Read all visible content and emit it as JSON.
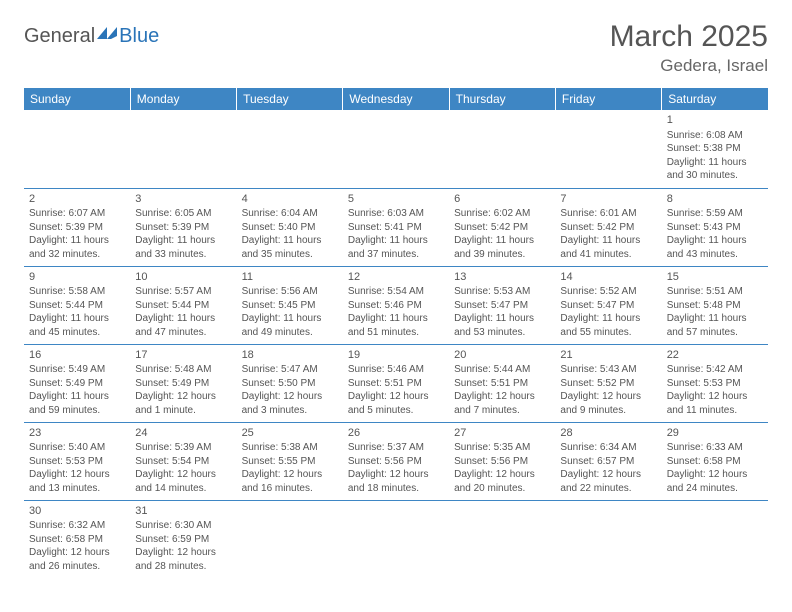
{
  "logo": {
    "general": "General",
    "blue": "Blue"
  },
  "title": "March 2025",
  "location": "Gedera, Israel",
  "weekdays": [
    "Sunday",
    "Monday",
    "Tuesday",
    "Wednesday",
    "Thursday",
    "Friday",
    "Saturday"
  ],
  "colors": {
    "header_bg": "#3e86c4",
    "header_text": "#ffffff",
    "border": "#3e86c4",
    "body_text": "#555555",
    "logo_blue": "#2a74b8",
    "logo_gray": "#555555"
  },
  "layout": {
    "cols": 7,
    "rows": 6,
    "first_weekday_index": 6,
    "days_in_month": 31
  },
  "days": {
    "1": {
      "sunrise": "6:08 AM",
      "sunset": "5:38 PM",
      "dl_h": 11,
      "dl_m": 30
    },
    "2": {
      "sunrise": "6:07 AM",
      "sunset": "5:39 PM",
      "dl_h": 11,
      "dl_m": 32
    },
    "3": {
      "sunrise": "6:05 AM",
      "sunset": "5:39 PM",
      "dl_h": 11,
      "dl_m": 33
    },
    "4": {
      "sunrise": "6:04 AM",
      "sunset": "5:40 PM",
      "dl_h": 11,
      "dl_m": 35
    },
    "5": {
      "sunrise": "6:03 AM",
      "sunset": "5:41 PM",
      "dl_h": 11,
      "dl_m": 37
    },
    "6": {
      "sunrise": "6:02 AM",
      "sunset": "5:42 PM",
      "dl_h": 11,
      "dl_m": 39
    },
    "7": {
      "sunrise": "6:01 AM",
      "sunset": "5:42 PM",
      "dl_h": 11,
      "dl_m": 41
    },
    "8": {
      "sunrise": "5:59 AM",
      "sunset": "5:43 PM",
      "dl_h": 11,
      "dl_m": 43
    },
    "9": {
      "sunrise": "5:58 AM",
      "sunset": "5:44 PM",
      "dl_h": 11,
      "dl_m": 45
    },
    "10": {
      "sunrise": "5:57 AM",
      "sunset": "5:44 PM",
      "dl_h": 11,
      "dl_m": 47
    },
    "11": {
      "sunrise": "5:56 AM",
      "sunset": "5:45 PM",
      "dl_h": 11,
      "dl_m": 49
    },
    "12": {
      "sunrise": "5:54 AM",
      "sunset": "5:46 PM",
      "dl_h": 11,
      "dl_m": 51
    },
    "13": {
      "sunrise": "5:53 AM",
      "sunset": "5:47 PM",
      "dl_h": 11,
      "dl_m": 53
    },
    "14": {
      "sunrise": "5:52 AM",
      "sunset": "5:47 PM",
      "dl_h": 11,
      "dl_m": 55
    },
    "15": {
      "sunrise": "5:51 AM",
      "sunset": "5:48 PM",
      "dl_h": 11,
      "dl_m": 57
    },
    "16": {
      "sunrise": "5:49 AM",
      "sunset": "5:49 PM",
      "dl_h": 11,
      "dl_m": 59
    },
    "17": {
      "sunrise": "5:48 AM",
      "sunset": "5:49 PM",
      "dl_h": 12,
      "dl_m": 1
    },
    "18": {
      "sunrise": "5:47 AM",
      "sunset": "5:50 PM",
      "dl_h": 12,
      "dl_m": 3
    },
    "19": {
      "sunrise": "5:46 AM",
      "sunset": "5:51 PM",
      "dl_h": 12,
      "dl_m": 5
    },
    "20": {
      "sunrise": "5:44 AM",
      "sunset": "5:51 PM",
      "dl_h": 12,
      "dl_m": 7
    },
    "21": {
      "sunrise": "5:43 AM",
      "sunset": "5:52 PM",
      "dl_h": 12,
      "dl_m": 9
    },
    "22": {
      "sunrise": "5:42 AM",
      "sunset": "5:53 PM",
      "dl_h": 12,
      "dl_m": 11
    },
    "23": {
      "sunrise": "5:40 AM",
      "sunset": "5:53 PM",
      "dl_h": 12,
      "dl_m": 13
    },
    "24": {
      "sunrise": "5:39 AM",
      "sunset": "5:54 PM",
      "dl_h": 12,
      "dl_m": 14
    },
    "25": {
      "sunrise": "5:38 AM",
      "sunset": "5:55 PM",
      "dl_h": 12,
      "dl_m": 16
    },
    "26": {
      "sunrise": "5:37 AM",
      "sunset": "5:56 PM",
      "dl_h": 12,
      "dl_m": 18
    },
    "27": {
      "sunrise": "5:35 AM",
      "sunset": "5:56 PM",
      "dl_h": 12,
      "dl_m": 20
    },
    "28": {
      "sunrise": "6:34 AM",
      "sunset": "6:57 PM",
      "dl_h": 12,
      "dl_m": 22
    },
    "29": {
      "sunrise": "6:33 AM",
      "sunset": "6:58 PM",
      "dl_h": 12,
      "dl_m": 24
    },
    "30": {
      "sunrise": "6:32 AM",
      "sunset": "6:58 PM",
      "dl_h": 12,
      "dl_m": 26
    },
    "31": {
      "sunrise": "6:30 AM",
      "sunset": "6:59 PM",
      "dl_h": 12,
      "dl_m": 28
    }
  },
  "labels": {
    "sunrise_prefix": "Sunrise: ",
    "sunset_prefix": "Sunset: ",
    "daylight_prefix": "Daylight: ",
    "hours_word": " hours",
    "and_word": "and ",
    "minutes_word": " minutes.",
    "minute_word": " minute."
  }
}
